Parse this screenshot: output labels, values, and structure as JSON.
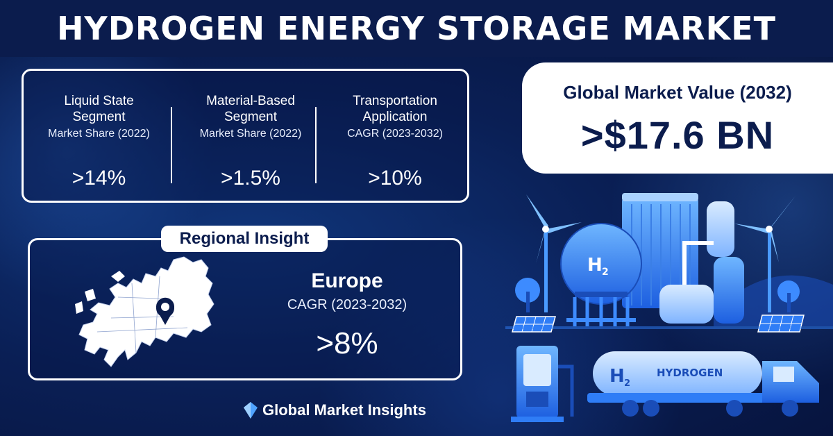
{
  "title": "HYDROGEN ENERGY STORAGE MARKET",
  "stats": [
    {
      "title_line1": "Liquid State",
      "title_line2": "Segment",
      "subtitle": "Market Share (2022)",
      "value": ">14%"
    },
    {
      "title_line1": "Material-Based",
      "title_line2": "Segment",
      "subtitle": "Market Share (2022)",
      "value": ">1.5%"
    },
    {
      "title_line1": "Transportation",
      "title_line2": "Application",
      "subtitle": "CAGR (2023-2032)",
      "value": ">10%"
    }
  ],
  "global_value": {
    "title": "Global Market Value (2032)",
    "value": ">$17.6 BN"
  },
  "regional": {
    "tag": "Regional Insight",
    "region": "Europe",
    "metric": "CAGR (2023-2032)",
    "value": ">8%"
  },
  "illustration": {
    "tank_label": "H",
    "tank_label_sub": "2",
    "truck_label": "H",
    "truck_label_sub": "2",
    "truck_text": "HYDROGEN"
  },
  "logo": {
    "text": "Global Market Insights"
  },
  "colors": {
    "navy": "#0b1c4d",
    "accent_blue": "#2f7df6",
    "white": "#ffffff"
  }
}
